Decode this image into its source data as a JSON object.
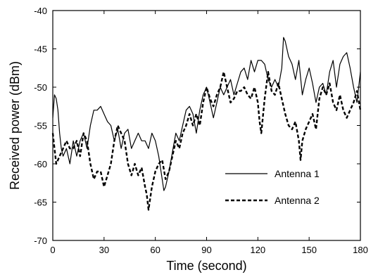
{
  "chart_data": {
    "type": "line",
    "title": "",
    "xlabel": "Time (second)",
    "ylabel": "Received power (dBm)",
    "xlim": [
      0,
      180
    ],
    "ylim": [
      -70,
      -40
    ],
    "xticks": [
      0,
      30,
      60,
      90,
      120,
      150,
      180
    ],
    "yticks": [
      -70,
      -65,
      -60,
      -55,
      -50,
      -45,
      -40
    ],
    "grid": false,
    "legend_position": "lower-right",
    "series": [
      {
        "name": "Antenna 1",
        "style": "solid",
        "color": "#000000",
        "x": [
          0,
          1,
          2,
          3,
          4,
          5,
          6,
          8,
          10,
          12,
          14,
          16,
          18,
          20,
          22,
          24,
          26,
          28,
          30,
          32,
          34,
          36,
          38,
          40,
          42,
          44,
          46,
          48,
          50,
          52,
          54,
          56,
          58,
          60,
          62,
          64,
          65,
          66,
          68,
          70,
          72,
          74,
          76,
          78,
          80,
          82,
          84,
          86,
          88,
          90,
          92,
          94,
          96,
          98,
          100,
          102,
          104,
          106,
          108,
          110,
          112,
          114,
          116,
          118,
          120,
          122,
          124,
          126,
          128,
          130,
          132,
          134,
          135,
          136,
          138,
          140,
          142,
          144,
          146,
          148,
          150,
          152,
          154,
          156,
          158,
          160,
          162,
          164,
          166,
          168,
          170,
          172,
          174,
          176,
          178,
          180
        ],
        "values": [
          -54,
          -51,
          -51.5,
          -53,
          -56,
          -58,
          -59,
          -58,
          -60,
          -57,
          -59,
          -57,
          -56,
          -58,
          -55,
          -53,
          -53,
          -52.5,
          -53.5,
          -54.5,
          -55,
          -57,
          -55.5,
          -58,
          -56,
          -55.5,
          -58,
          -57,
          -56,
          -57,
          -57,
          -58,
          -56,
          -57,
          -59,
          -62,
          -63.5,
          -63,
          -61,
          -58.5,
          -56,
          -57,
          -55,
          -53,
          -52.5,
          -53.5,
          -56,
          -53,
          -51,
          -50,
          -52,
          -54,
          -52,
          -50,
          -51,
          -50,
          -49,
          -51,
          -49.5,
          -48,
          -47.5,
          -49,
          -46.5,
          -48,
          -46.5,
          -46.5,
          -47,
          -49,
          -50,
          -49,
          -50,
          -47.5,
          -43.5,
          -44,
          -46,
          -47,
          -49,
          -46.5,
          -51,
          -49,
          -47.5,
          -49.5,
          -52,
          -50,
          -49.5,
          -51,
          -48,
          -46.5,
          -50,
          -47,
          -46,
          -45.5,
          -47.5,
          -50,
          -52,
          -48
        ]
      },
      {
        "name": "Antenna 2",
        "style": "dashed",
        "color": "#000000",
        "x": [
          0,
          1,
          2,
          4,
          6,
          8,
          10,
          12,
          14,
          16,
          18,
          20,
          22,
          24,
          26,
          28,
          30,
          32,
          34,
          36,
          38,
          40,
          42,
          44,
          46,
          48,
          50,
          52,
          54,
          55,
          56,
          58,
          60,
          62,
          64,
          66,
          68,
          70,
          72,
          74,
          76,
          78,
          80,
          82,
          84,
          86,
          88,
          90,
          92,
          94,
          96,
          98,
          100,
          102,
          104,
          106,
          108,
          110,
          112,
          114,
          116,
          118,
          120,
          121,
          122,
          124,
          126,
          128,
          130,
          132,
          134,
          136,
          138,
          140,
          142,
          144,
          145,
          146,
          148,
          150,
          152,
          154,
          156,
          158,
          160,
          162,
          164,
          166,
          168,
          170,
          172,
          174,
          176,
          178,
          180
        ],
        "values": [
          -56,
          -58,
          -60,
          -59,
          -58,
          -57,
          -58,
          -58,
          -57,
          -59,
          -56,
          -57,
          -60,
          -62,
          -61,
          -61,
          -63,
          -61.5,
          -60,
          -57,
          -55,
          -56,
          -57,
          -60,
          -61.5,
          -60,
          -61.5,
          -60.5,
          -63,
          -64,
          -66,
          -63,
          -61,
          -60,
          -59.5,
          -62,
          -61,
          -59,
          -57,
          -58,
          -56,
          -55,
          -53.5,
          -55,
          -53.5,
          -55,
          -52,
          -50,
          -51.5,
          -52.5,
          -51,
          -50,
          -48,
          -50,
          -52,
          -51.5,
          -50.5,
          -50.5,
          -50,
          -51,
          -51.5,
          -50,
          -52,
          -54.5,
          -56,
          -51.5,
          -48,
          -50.5,
          -51,
          -49.5,
          -51.5,
          -53.5,
          -55,
          -55.5,
          -54.5,
          -57,
          -59.5,
          -57,
          -55.5,
          -54.5,
          -53.5,
          -55.5,
          -51.5,
          -50,
          -51,
          -49.5,
          -52,
          -53,
          -51,
          -53,
          -54,
          -53,
          -52,
          -50.5,
          -53
        ]
      }
    ]
  }
}
